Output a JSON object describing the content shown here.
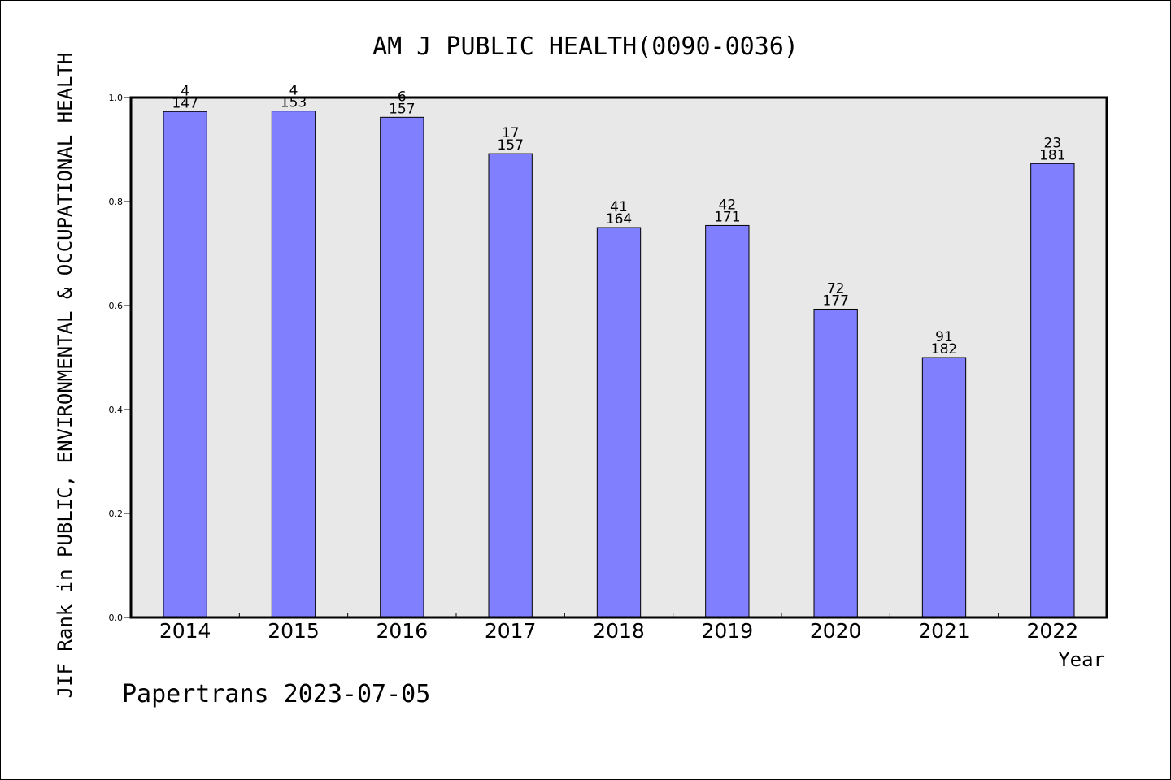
{
  "chart_data": {
    "type": "bar",
    "title": "AM J PUBLIC HEALTH(0090-0036)",
    "xlabel": "Year",
    "ylabel": "JIF Rank in PUBLIC, ENVIRONMENTAL & OCCUPATIONAL HEALTH",
    "categories": [
      "2014",
      "2015",
      "2016",
      "2017",
      "2018",
      "2019",
      "2020",
      "2021",
      "2022"
    ],
    "values": [
      0.973,
      0.974,
      0.962,
      0.892,
      0.75,
      0.754,
      0.593,
      0.5,
      0.873
    ],
    "rank": [
      "4",
      "4",
      "6",
      "17",
      "41",
      "42",
      "72",
      "91",
      "23"
    ],
    "total": [
      "147",
      "153",
      "157",
      "157",
      "164",
      "171",
      "177",
      "182",
      "181"
    ],
    "ylim": [
      0,
      1.0
    ],
    "yticks": [
      "0.0",
      "0.2",
      "0.4",
      "0.6",
      "0.8",
      "1.0"
    ],
    "grid": false,
    "bar_color": "#8080ff",
    "plot_background": "#e8e8e8"
  },
  "footer": {
    "source": "Papertrans 2023-07-05"
  }
}
